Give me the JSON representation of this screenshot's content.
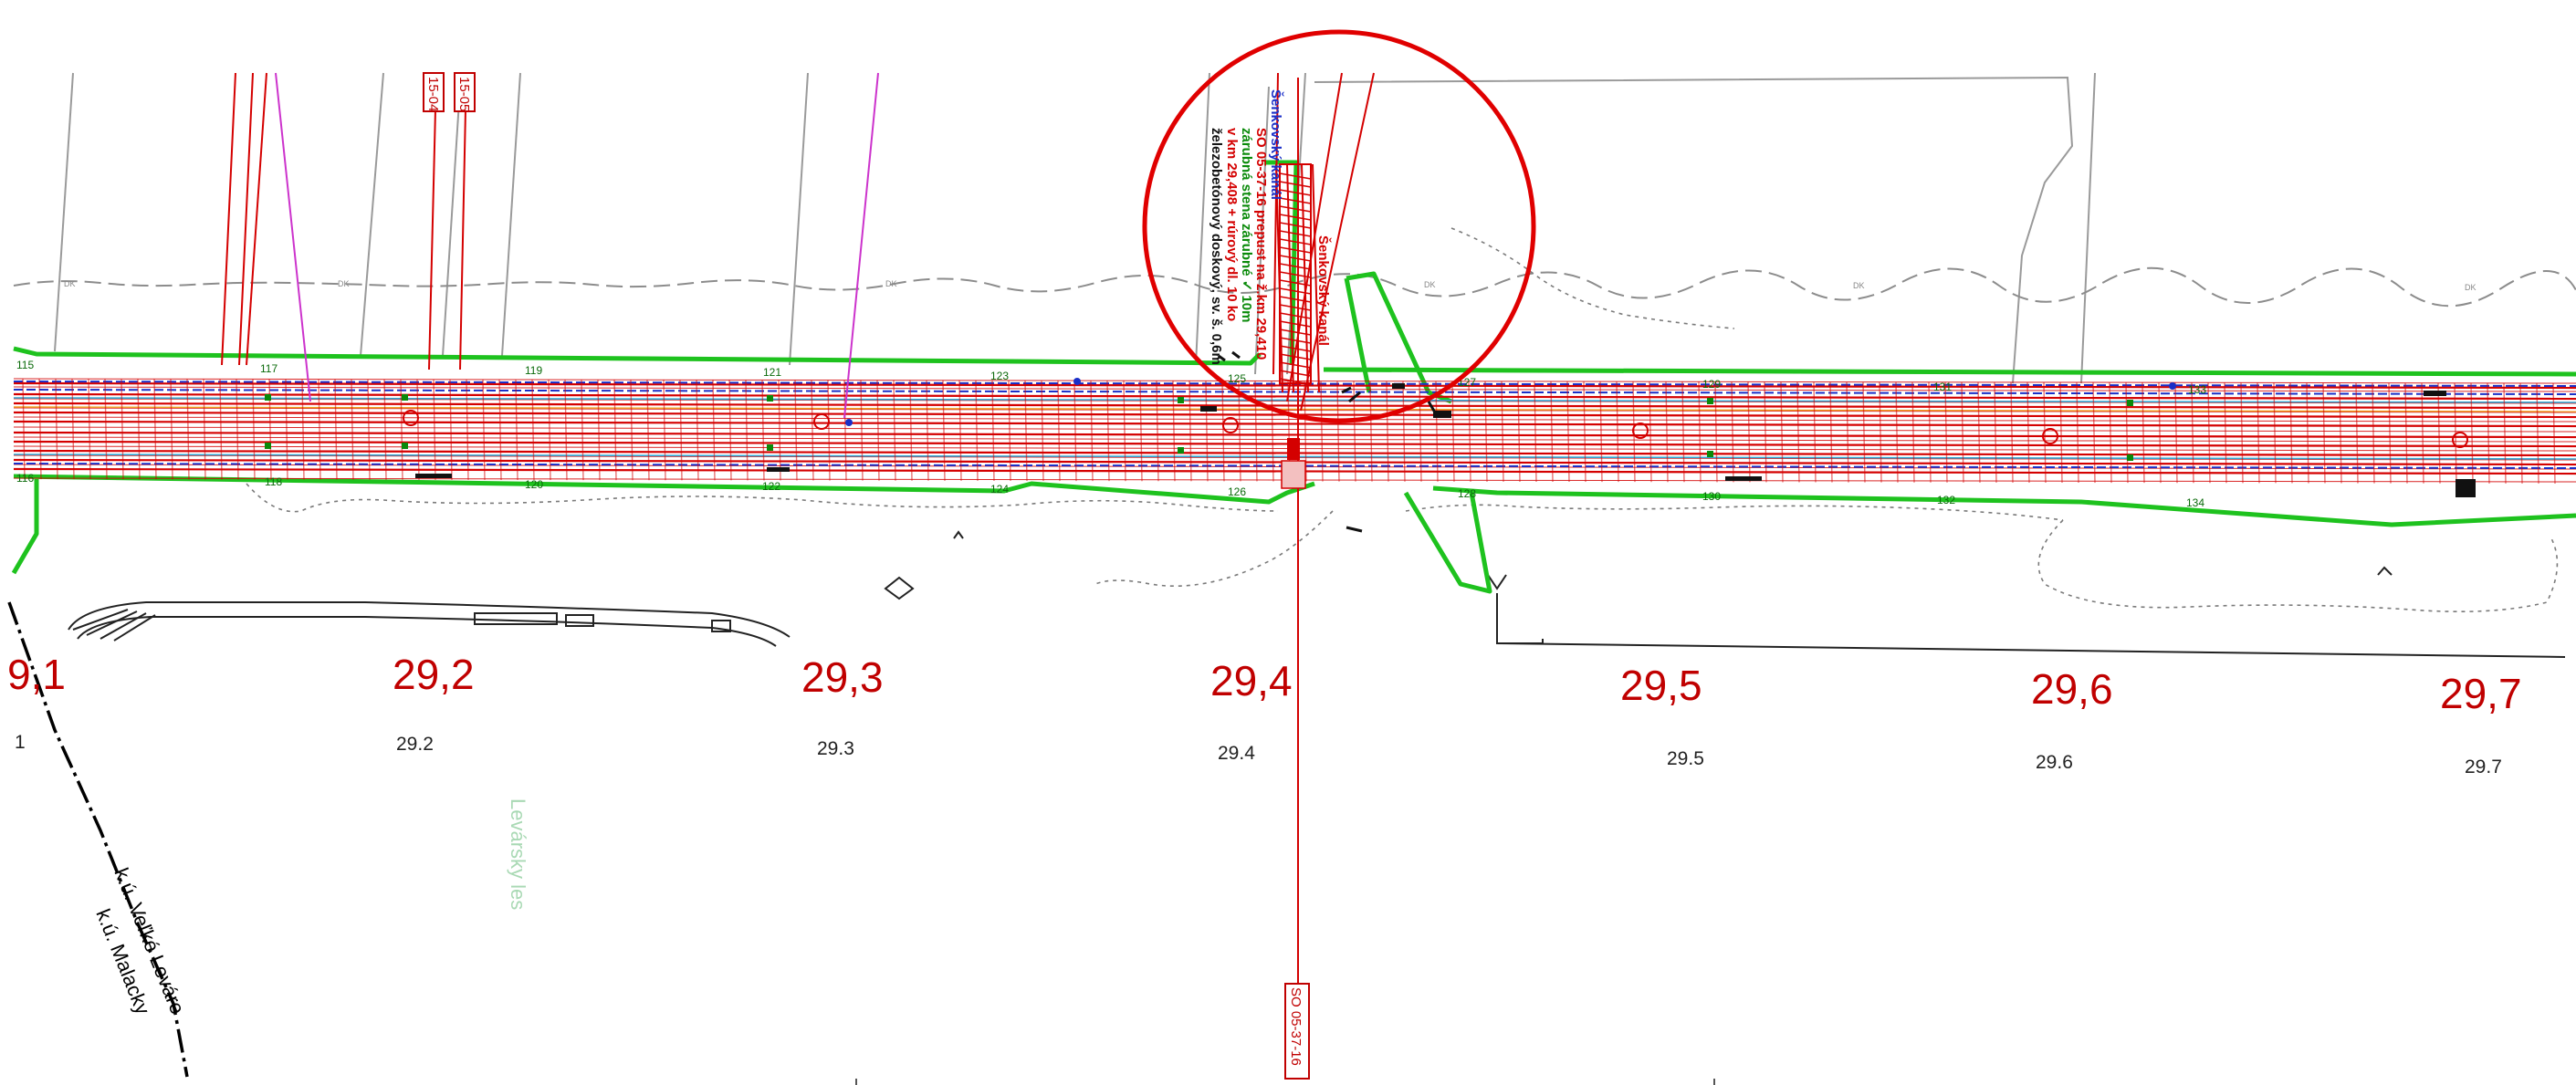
{
  "km_labels": {
    "k29_1": "9,1",
    "k29_2": "29,2",
    "k29_3": "29,3",
    "k29_4": "29,4",
    "k29_5": "29,5",
    "k29_6": "29,6",
    "k29_7": "29,7"
  },
  "km_small": {
    "s29_1": "1",
    "s29_2": "29.2",
    "s29_3": "29.3",
    "s29_4": "29.4",
    "s29_5": "29.5",
    "s29_6": "29.6",
    "s29_7": "29.7"
  },
  "points_top": {
    "p115": "115",
    "p117": "117",
    "p119": "119",
    "p121": "121",
    "p123": "123",
    "p125": "125",
    "p127": "127",
    "p129": "129",
    "p131": "131",
    "p133": "133"
  },
  "points_bottom": {
    "p116": "116",
    "p118": "118",
    "p120": "120",
    "p122": "122",
    "p124": "124",
    "p126": "126",
    "p128": "128",
    "p130": "130",
    "p132": "132",
    "p134": "134"
  },
  "boundary": {
    "upper": "k.ú. Veľké Leváre",
    "lower": "k.ú. Malacky"
  },
  "forest": "Levársky les",
  "drawing_refs": {
    "top_1": "15-04",
    "top_2": "15-05",
    "bottom": "SO 05-37-16"
  },
  "culvert_notes": {
    "n_blue": "Šenkovský kanál",
    "n_red1": "SO 05-37-16 prepust na ž.km 29,410",
    "n_grn": "zárubná stena zárubné ✓ 10m",
    "n_red2": "v km 29,408 + rúrový dl. 10 ko",
    "n_blk": "železobetónový doskový, sv. š. 0,6m"
  },
  "stream_label": "Šenkovský kanál",
  "colors": {
    "track": "#d40000",
    "limit_line": "#1ec21e",
    "highlight_circle": "#e00000",
    "km_text": "#c00000",
    "utility": "#1a2fc8",
    "magenta": "#cc33cc"
  }
}
